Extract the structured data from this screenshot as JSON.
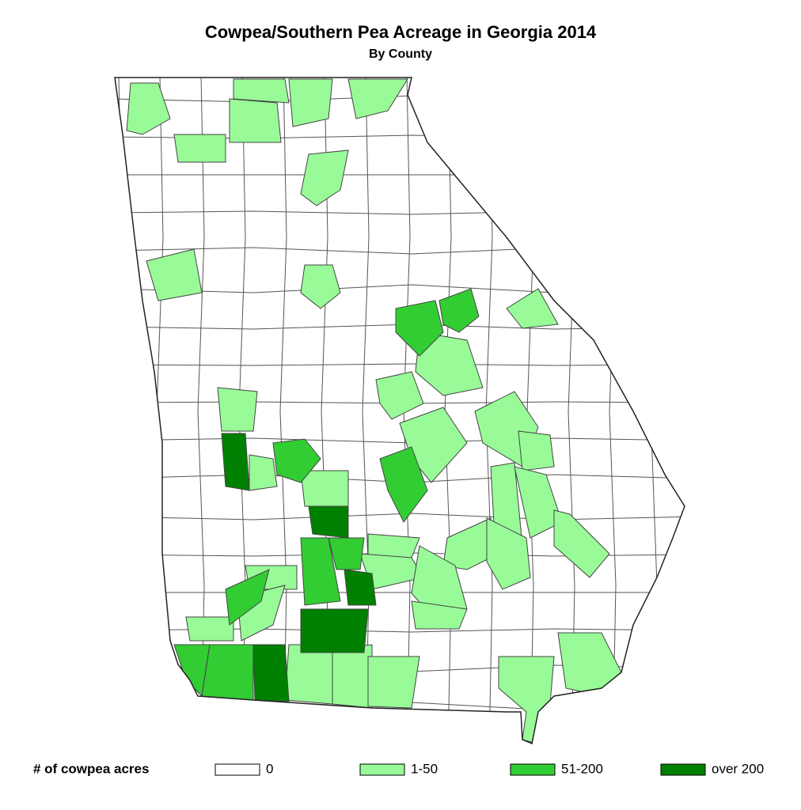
{
  "title": "Cowpea/Southern Pea Acreage in Georgia 2014",
  "subtitle": "By County",
  "legend": {
    "title": "# of cowpea acres",
    "items": [
      {
        "label": "0",
        "color": "#ffffff"
      },
      {
        "label": "1-50",
        "color": "#98fb98"
      },
      {
        "label": "51-200",
        "color": "#32cd32"
      },
      {
        "label": "over 200",
        "color": "#008000"
      }
    ]
  }
}
